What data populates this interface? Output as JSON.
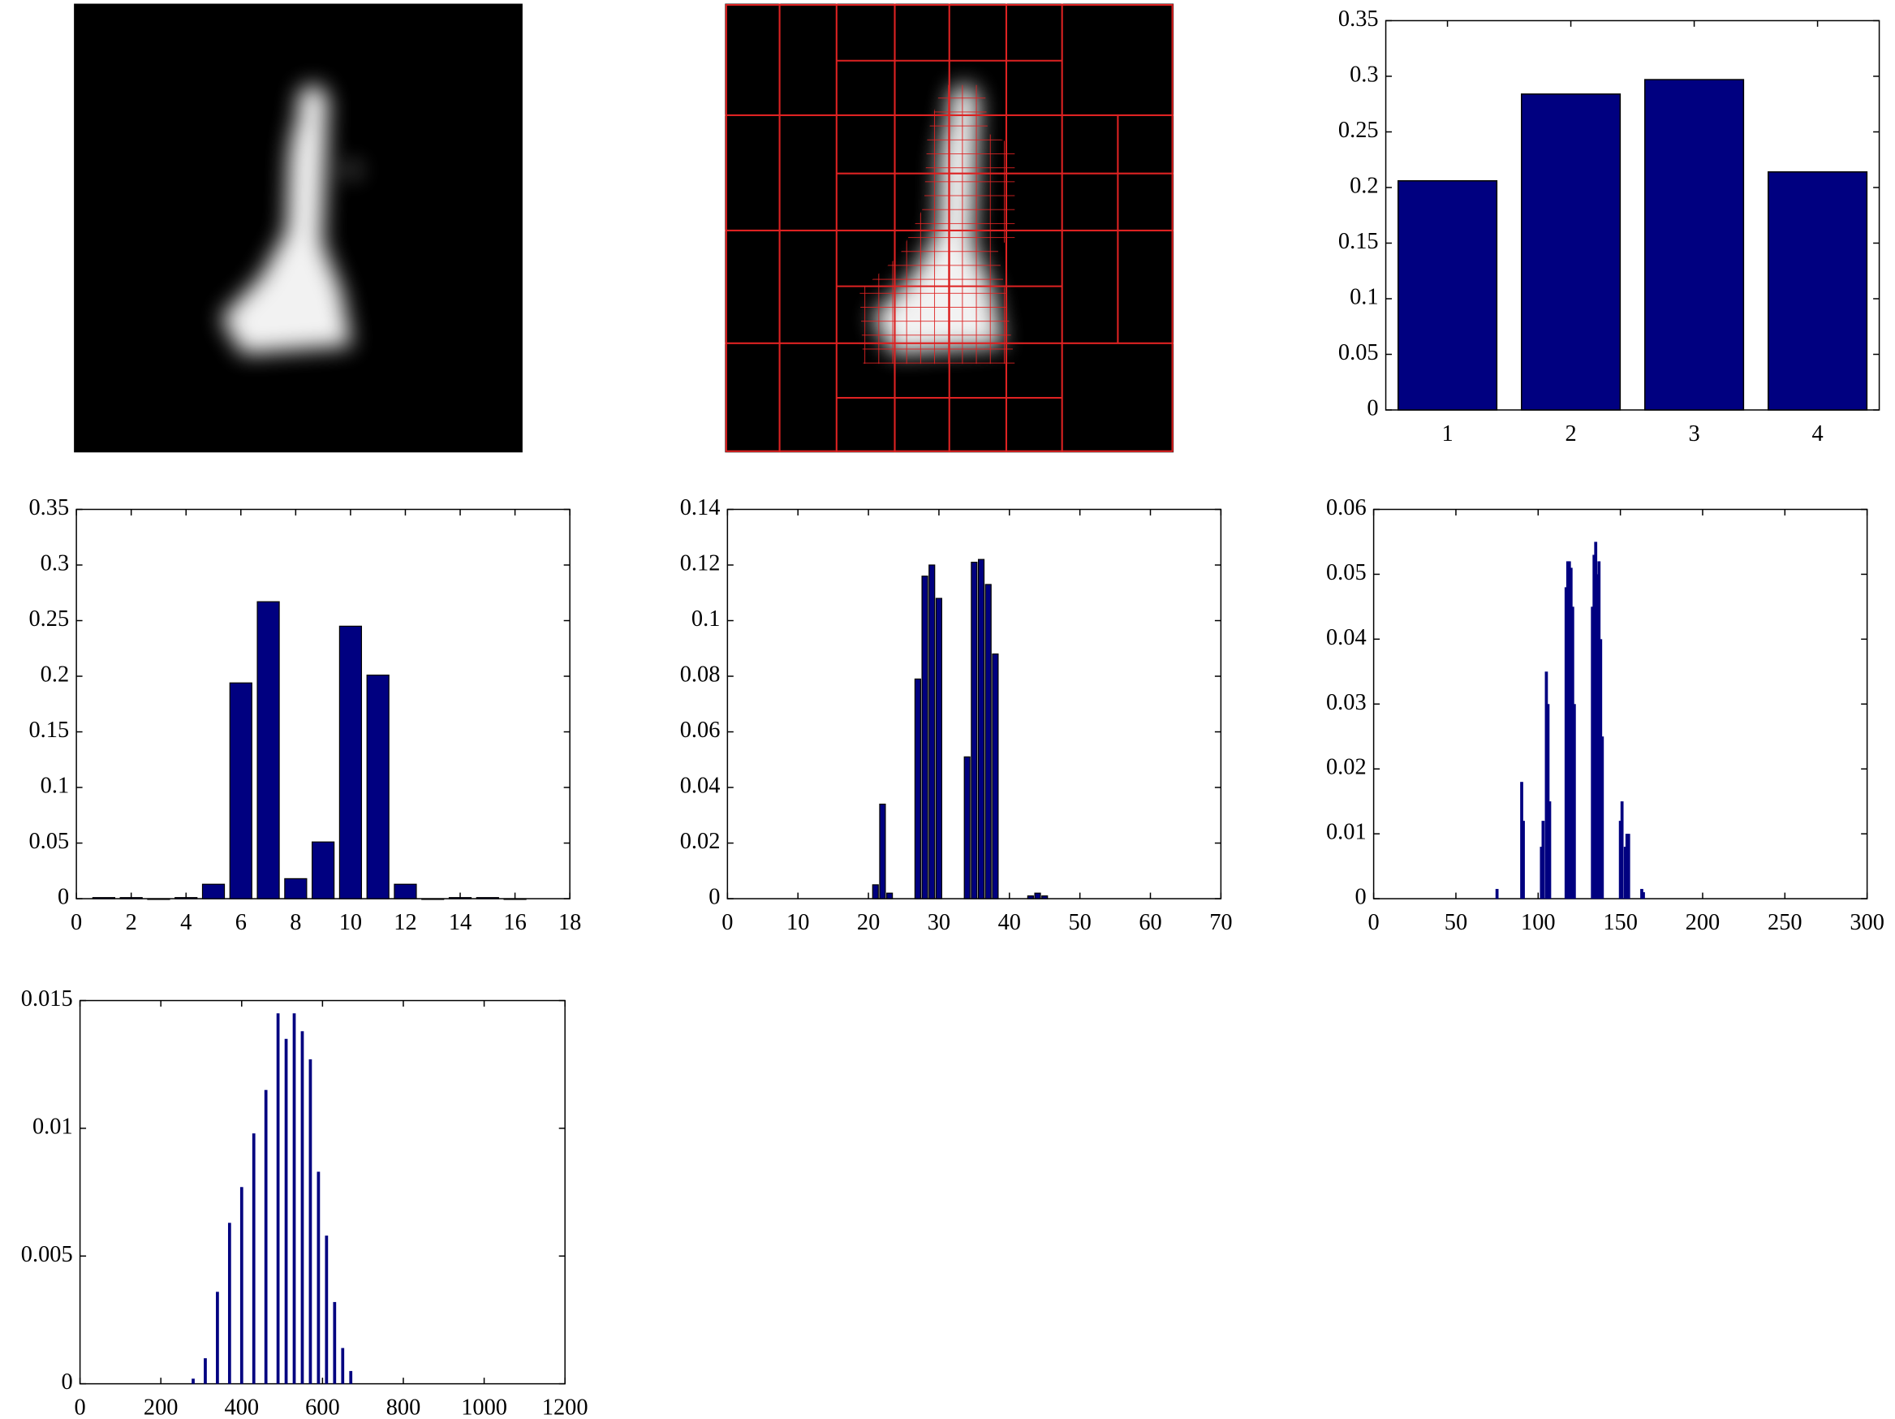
{
  "chart_data": [
    {
      "type": "bar",
      "categories": [
        "1",
        "2",
        "3",
        "4"
      ],
      "values": [
        0.206,
        0.284,
        0.297,
        0.214
      ],
      "color": "#000080",
      "ylim": [
        0,
        0.35
      ],
      "yticks": [
        0,
        0.05,
        0.1,
        0.15,
        0.2,
        0.25,
        0.3,
        0.35
      ]
    },
    {
      "type": "histogram",
      "x": [
        1,
        2,
        3,
        4,
        5,
        6,
        7,
        8,
        9,
        10,
        11,
        12,
        13,
        14,
        15,
        16
      ],
      "values": [
        0.001,
        0.001,
        0,
        0.001,
        0.013,
        0.194,
        0.267,
        0.018,
        0.051,
        0.245,
        0.201,
        0.013,
        0,
        0.001,
        0.001,
        0
      ],
      "color": "#000080",
      "xlim": [
        0,
        18
      ],
      "xticks": [
        0,
        2,
        4,
        6,
        8,
        10,
        12,
        14,
        16,
        18
      ],
      "ylim": [
        0,
        0.35
      ],
      "yticks": [
        0,
        0.05,
        0.1,
        0.15,
        0.2,
        0.25,
        0.3,
        0.35
      ]
    },
    {
      "type": "histogram",
      "x": [
        21,
        22,
        23,
        27,
        28,
        29,
        30,
        34,
        35,
        36,
        37,
        38,
        43,
        44,
        45
      ],
      "values": [
        0.005,
        0.034,
        0.002,
        0.079,
        0.116,
        0.12,
        0.108,
        0.051,
        0.121,
        0.122,
        0.113,
        0.088,
        0.001,
        0.002,
        0.001
      ],
      "color": "#000080",
      "xlim": [
        0,
        70
      ],
      "xticks": [
        0,
        10,
        20,
        30,
        40,
        50,
        60,
        70
      ],
      "ylim": [
        0,
        0.14
      ],
      "yticks": [
        0,
        0.02,
        0.04,
        0.06,
        0.08,
        0.1,
        0.12,
        0.14
      ]
    },
    {
      "type": "histogram",
      "x": [
        75,
        90,
        91,
        102,
        103,
        105,
        106,
        107,
        117,
        118,
        119,
        120,
        121,
        122,
        133,
        134,
        135,
        136,
        137,
        138,
        139,
        150,
        151,
        153,
        154,
        155,
        163,
        164
      ],
      "values": [
        0.0015,
        0.018,
        0.012,
        0.008,
        0.012,
        0.035,
        0.03,
        0.015,
        0.048,
        0.052,
        0.052,
        0.051,
        0.045,
        0.03,
        0.045,
        0.053,
        0.055,
        0.05,
        0.052,
        0.04,
        0.025,
        0.012,
        0.015,
        0.008,
        0.01,
        0.01,
        0.0015,
        0.001
      ],
      "color": "#000080",
      "xlim": [
        0,
        300
      ],
      "xticks": [
        0,
        50,
        100,
        150,
        200,
        250,
        300
      ],
      "ylim": [
        0,
        0.06
      ],
      "yticks": [
        0,
        0.01,
        0.02,
        0.03,
        0.04,
        0.05,
        0.06
      ]
    },
    {
      "type": "histogram",
      "x": [
        280,
        310,
        340,
        370,
        400,
        430,
        460,
        490,
        510,
        530,
        550,
        570,
        590,
        610,
        630,
        650,
        670
      ],
      "values": [
        0.0002,
        0.001,
        0.0036,
        0.0063,
        0.0077,
        0.0098,
        0.0115,
        0.0145,
        0.0135,
        0.0145,
        0.0138,
        0.0127,
        0.0083,
        0.0058,
        0.0032,
        0.0014,
        0.0005
      ],
      "color": "#000080",
      "xlim": [
        0,
        1200
      ],
      "xticks": [
        0,
        200,
        400,
        600,
        800,
        1000,
        1200
      ],
      "ylim": [
        0,
        0.015
      ],
      "yticks": [
        0,
        0.005,
        0.01,
        0.015
      ]
    }
  ]
}
